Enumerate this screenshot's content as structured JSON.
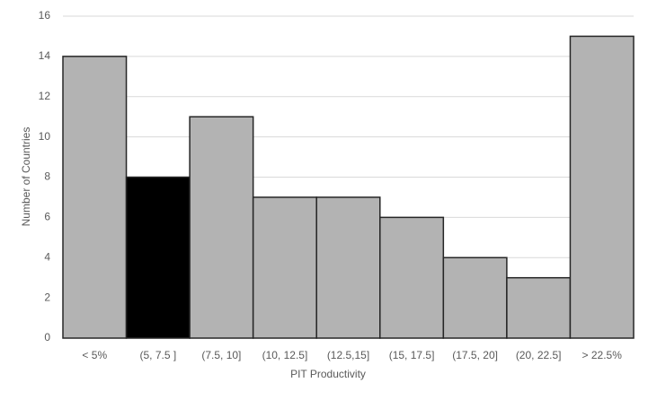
{
  "chart_data": {
    "type": "bar",
    "x_label": "PIT Productivity",
    "y_label": "Number of Countries",
    "categories": [
      "< 5%",
      "(5, 7.5 ]",
      "(7.5, 10]",
      "(10, 12.5]",
      "(12.5,15]",
      "(15, 17.5]",
      "(17.5, 20]",
      "(20, 22.5]",
      "> 22.5%"
    ],
    "values": [
      14,
      8,
      11,
      7,
      7,
      6,
      4,
      3,
      15
    ],
    "colors": [
      "#b3b3b3",
      "#000000",
      "#b3b3b3",
      "#b3b3b3",
      "#b3b3b3",
      "#b3b3b3",
      "#b3b3b3",
      "#b3b3b3",
      "#b3b3b3"
    ],
    "ylim": [
      0,
      16
    ],
    "yticks": [
      0,
      2,
      4,
      6,
      8,
      10,
      12,
      14,
      16
    ],
    "grid": true
  }
}
